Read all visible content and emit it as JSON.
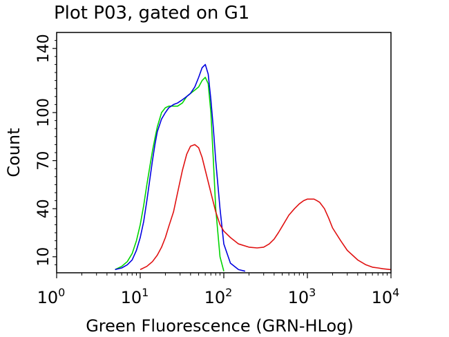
{
  "plot_title": "Plot P03, gated on G1",
  "chart_data": {
    "type": "line",
    "title": "Plot P03, gated on G1",
    "xlabel": "Green Fluorescence (GRN-HLog)",
    "ylabel": "Count",
    "x_scale": "log",
    "xlim": [
      1,
      10000
    ],
    "ylim": [
      0,
      150
    ],
    "xticks": [
      {
        "value": 1,
        "base": "10",
        "exp": "0"
      },
      {
        "value": 10,
        "base": "10",
        "exp": "1"
      },
      {
        "value": 100,
        "base": "10",
        "exp": "2"
      },
      {
        "value": 1000,
        "base": "10",
        "exp": "3"
      },
      {
        "value": 10000,
        "base": "10",
        "exp": "4"
      }
    ],
    "yticks": [
      10,
      40,
      70,
      100,
      140
    ],
    "grid": false,
    "legend": "none",
    "series": [
      {
        "color": "#00d400",
        "x": [
          5,
          6,
          7,
          8,
          9,
          10,
          11,
          12,
          13,
          14,
          15,
          16,
          18,
          20,
          22,
          25,
          28,
          32,
          36,
          40,
          45,
          50,
          55,
          60,
          65,
          70,
          75,
          80,
          90,
          100
        ],
        "y": [
          2,
          4,
          7,
          12,
          20,
          30,
          42,
          55,
          66,
          76,
          84,
          91,
          100,
          103,
          104,
          104,
          104,
          106,
          110,
          112,
          114,
          116,
          120,
          122,
          118,
          100,
          70,
          40,
          10,
          1
        ]
      },
      {
        "color": "#0000e0",
        "x": [
          5,
          6,
          7,
          8,
          9,
          10,
          11,
          12,
          13,
          14,
          15,
          16,
          18,
          20,
          22,
          25,
          28,
          32,
          36,
          40,
          45,
          50,
          55,
          60,
          65,
          70,
          75,
          80,
          90,
          100,
          120,
          150,
          180
        ],
        "y": [
          2,
          3,
          5,
          8,
          14,
          22,
          32,
          45,
          58,
          70,
          80,
          88,
          96,
          100,
          103,
          105,
          106,
          108,
          110,
          112,
          116,
          122,
          128,
          130,
          124,
          108,
          90,
          70,
          40,
          18,
          6,
          2,
          1
        ]
      },
      {
        "color": "#e01010",
        "x": [
          10,
          12,
          14,
          16,
          18,
          20,
          22,
          25,
          28,
          32,
          36,
          40,
          45,
          50,
          55,
          60,
          70,
          80,
          90,
          100,
          120,
          150,
          200,
          250,
          300,
          350,
          400,
          450,
          500,
          600,
          700,
          800,
          900,
          1000,
          1100,
          1200,
          1300,
          1400,
          1600,
          1800,
          2000,
          2500,
          3000,
          4000,
          5000,
          6000,
          7000,
          8000,
          10000
        ],
        "y": [
          2,
          4,
          7,
          11,
          16,
          22,
          29,
          38,
          50,
          64,
          74,
          79,
          80,
          78,
          72,
          64,
          50,
          38,
          30,
          26,
          22,
          18,
          16,
          15.5,
          16,
          18,
          21,
          25,
          29,
          36,
          40,
          43,
          45,
          46,
          46,
          46,
          45,
          44,
          40,
          34,
          28,
          20,
          14,
          8,
          5,
          3.5,
          3,
          2.5,
          2
        ]
      }
    ]
  }
}
